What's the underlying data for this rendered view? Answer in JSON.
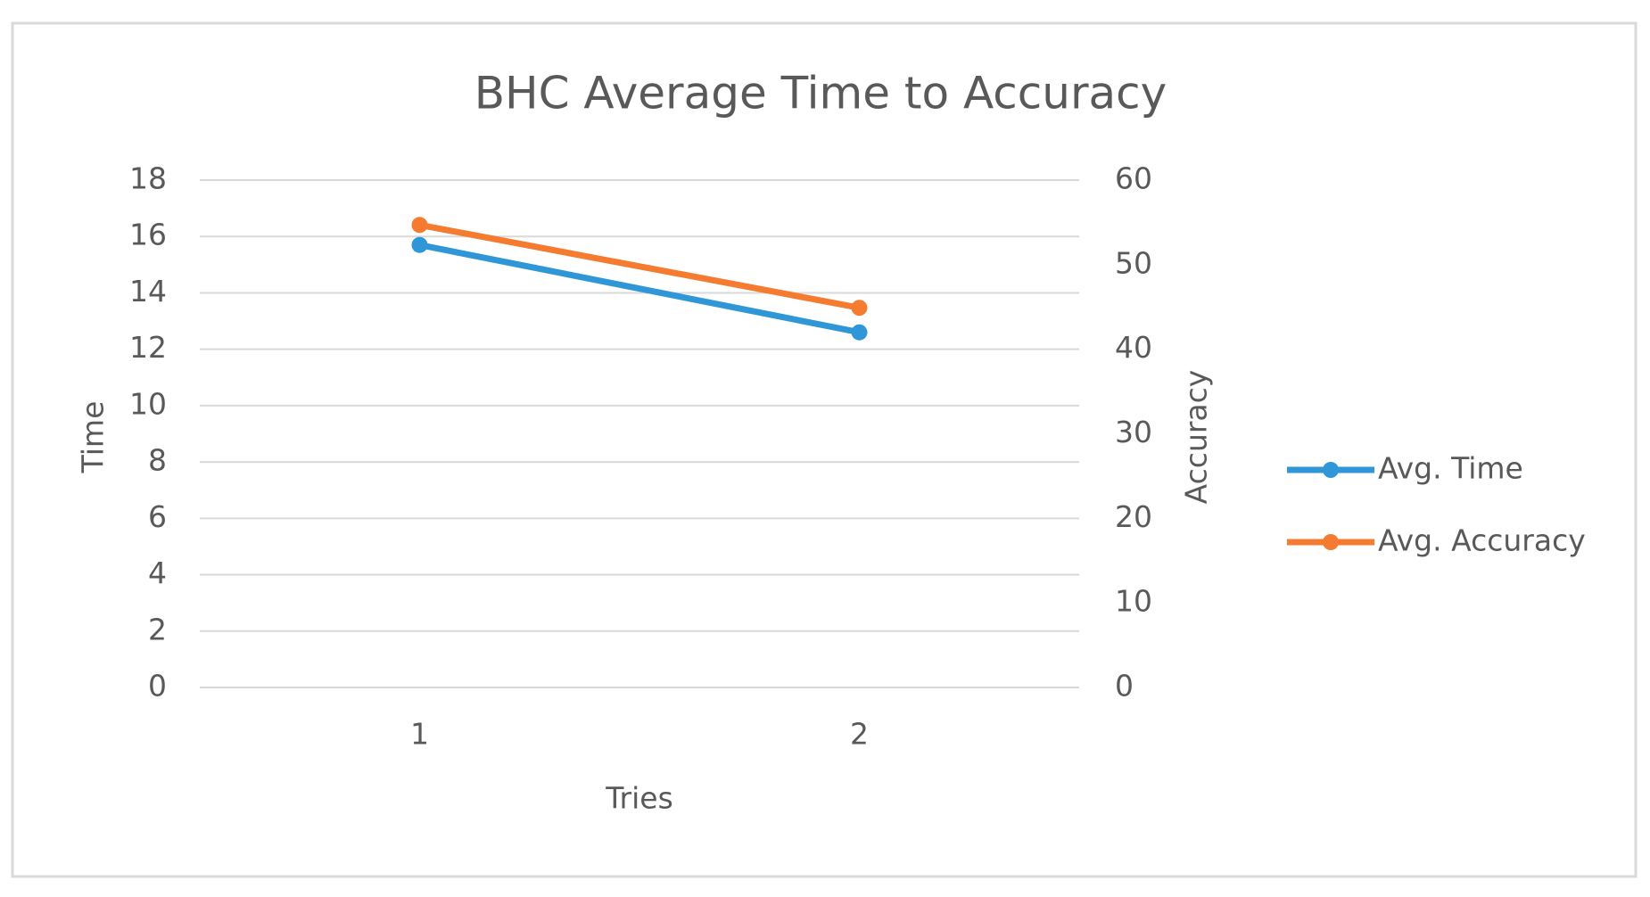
{
  "chart_data": {
    "type": "line",
    "title": "BHC Average Time to Accuracy",
    "x_label": "Tries",
    "y_label": "Time",
    "y2_label": "Accuracy",
    "categories": [
      "1",
      "2"
    ],
    "series": [
      {
        "name": "Avg. Time",
        "color": "#2f97d8",
        "values": [
          15.7,
          12.6
        ]
      },
      {
        "name": "Avg. Accuracy",
        "color": "#f47b30",
        "values": [
          54.7,
          44.9
        ],
        "axis": "y2"
      }
    ],
    "ylim": [
      0,
      18
    ],
    "yticks": [
      0,
      2,
      4,
      6,
      8,
      10,
      12,
      14,
      16,
      18
    ],
    "y2lim": [
      0,
      60
    ],
    "y2ticks": [
      0,
      10,
      20,
      30,
      40,
      50,
      60
    ],
    "grid": true,
    "legend": "right"
  }
}
